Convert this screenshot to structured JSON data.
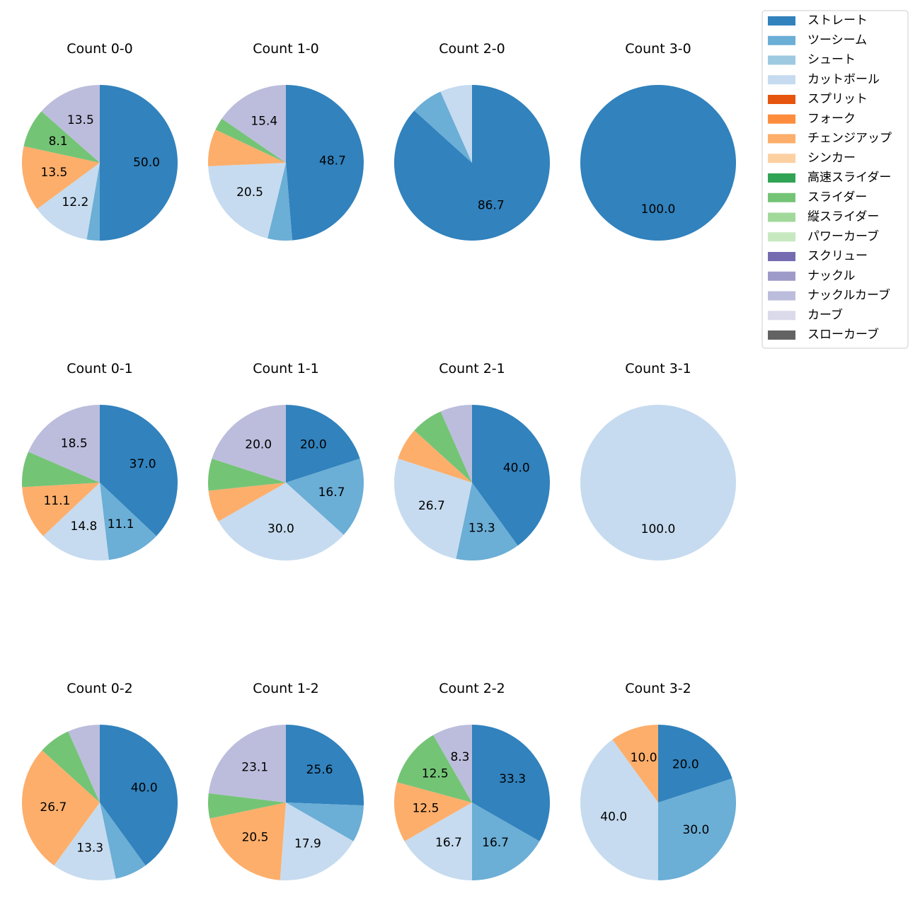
{
  "chart_data": {
    "type": "pie",
    "legend_position": "top-right",
    "colors": {
      "ストレート": "#3182bd",
      "ツーシーム": "#6baed6",
      "シュート": "#9ecae1",
      "カットボール": "#c6dbef",
      "スプリット": "#e6550d",
      "フォーク": "#fd8d3c",
      "チェンジアップ": "#fdae6b",
      "シンカー": "#fdd0a2",
      "高速スライダー": "#31a354",
      "スライダー": "#74c476",
      "縦スライダー": "#a1d99b",
      "パワーカーブ": "#c7e9c0",
      "スクリュー": "#756bb1",
      "ナックル": "#9e9ac8",
      "ナックルカーブ": "#bcbddc",
      "カーブ": "#dadaeb",
      "スローカーブ": "#636363"
    },
    "legend": [
      "ストレート",
      "ツーシーム",
      "シュート",
      "カットボール",
      "スプリット",
      "フォーク",
      "チェンジアップ",
      "シンカー",
      "高速スライダー",
      "スライダー",
      "縦スライダー",
      "パワーカーブ",
      "スクリュー",
      "ナックル",
      "ナックルカーブ",
      "カーブ",
      "スローカーブ"
    ],
    "panels": [
      {
        "title": "Count 0-0",
        "slices": [
          {
            "category": "ストレート",
            "value": 50.0,
            "label": "50.0"
          },
          {
            "category": "ツーシーム",
            "value": 2.7,
            "label": ""
          },
          {
            "category": "カットボール",
            "value": 12.2,
            "label": "12.2"
          },
          {
            "category": "チェンジアップ",
            "value": 13.5,
            "label": "13.5"
          },
          {
            "category": "スライダー",
            "value": 8.1,
            "label": "8.1"
          },
          {
            "category": "ナックルカーブ",
            "value": 13.5,
            "label": "13.5"
          }
        ]
      },
      {
        "title": "Count 1-0",
        "slices": [
          {
            "category": "ストレート",
            "value": 48.7,
            "label": "48.7"
          },
          {
            "category": "ツーシーム",
            "value": 5.1,
            "label": ""
          },
          {
            "category": "カットボール",
            "value": 20.5,
            "label": "20.5"
          },
          {
            "category": "チェンジアップ",
            "value": 7.7,
            "label": ""
          },
          {
            "category": "スライダー",
            "value": 2.6,
            "label": ""
          },
          {
            "category": "ナックルカーブ",
            "value": 15.4,
            "label": "15.4"
          }
        ]
      },
      {
        "title": "Count 2-0",
        "slices": [
          {
            "category": "ストレート",
            "value": 86.7,
            "label": "86.7"
          },
          {
            "category": "ツーシーム",
            "value": 6.65,
            "label": ""
          },
          {
            "category": "カットボール",
            "value": 6.65,
            "label": ""
          }
        ]
      },
      {
        "title": "Count 3-0",
        "slices": [
          {
            "category": "ストレート",
            "value": 100.0,
            "label": "100.0"
          }
        ]
      },
      {
        "title": "Count 0-1",
        "slices": [
          {
            "category": "ストレート",
            "value": 37.0,
            "label": "37.0"
          },
          {
            "category": "ツーシーム",
            "value": 11.1,
            "label": "11.1"
          },
          {
            "category": "カットボール",
            "value": 14.8,
            "label": "14.8"
          },
          {
            "category": "チェンジアップ",
            "value": 11.1,
            "label": "11.1"
          },
          {
            "category": "スライダー",
            "value": 7.4,
            "label": ""
          },
          {
            "category": "ナックルカーブ",
            "value": 18.5,
            "label": "18.5"
          }
        ]
      },
      {
        "title": "Count 1-1",
        "slices": [
          {
            "category": "ストレート",
            "value": 20.0,
            "label": "20.0"
          },
          {
            "category": "ツーシーム",
            "value": 16.7,
            "label": "16.7"
          },
          {
            "category": "カットボール",
            "value": 30.0,
            "label": "30.0"
          },
          {
            "category": "チェンジアップ",
            "value": 6.65,
            "label": ""
          },
          {
            "category": "スライダー",
            "value": 6.65,
            "label": ""
          },
          {
            "category": "ナックルカーブ",
            "value": 20.0,
            "label": "20.0"
          }
        ]
      },
      {
        "title": "Count 2-1",
        "slices": [
          {
            "category": "ストレート",
            "value": 40.0,
            "label": "40.0"
          },
          {
            "category": "ツーシーム",
            "value": 13.3,
            "label": "13.3"
          },
          {
            "category": "カットボール",
            "value": 26.7,
            "label": "26.7"
          },
          {
            "category": "チェンジアップ",
            "value": 6.7,
            "label": ""
          },
          {
            "category": "スライダー",
            "value": 6.7,
            "label": ""
          },
          {
            "category": "ナックルカーブ",
            "value": 6.6,
            "label": ""
          }
        ]
      },
      {
        "title": "Count 3-1",
        "slices": [
          {
            "category": "カットボール",
            "value": 100.0,
            "label": "100.0"
          }
        ]
      },
      {
        "title": "Count 0-2",
        "slices": [
          {
            "category": "ストレート",
            "value": 40.0,
            "label": "40.0"
          },
          {
            "category": "ツーシーム",
            "value": 6.7,
            "label": ""
          },
          {
            "category": "カットボール",
            "value": 13.3,
            "label": "13.3"
          },
          {
            "category": "チェンジアップ",
            "value": 26.7,
            "label": "26.7"
          },
          {
            "category": "スライダー",
            "value": 6.65,
            "label": ""
          },
          {
            "category": "ナックルカーブ",
            "value": 6.65,
            "label": ""
          }
        ]
      },
      {
        "title": "Count 1-2",
        "slices": [
          {
            "category": "ストレート",
            "value": 25.6,
            "label": "25.6"
          },
          {
            "category": "ツーシーム",
            "value": 7.7,
            "label": ""
          },
          {
            "category": "カットボール",
            "value": 17.9,
            "label": "17.9"
          },
          {
            "category": "チェンジアップ",
            "value": 20.5,
            "label": "20.5"
          },
          {
            "category": "スライダー",
            "value": 5.2,
            "label": ""
          },
          {
            "category": "ナックルカーブ",
            "value": 23.1,
            "label": "23.1"
          }
        ]
      },
      {
        "title": "Count 2-2",
        "slices": [
          {
            "category": "ストレート",
            "value": 33.3,
            "label": "33.3"
          },
          {
            "category": "ツーシーム",
            "value": 16.7,
            "label": "16.7"
          },
          {
            "category": "カットボール",
            "value": 16.7,
            "label": "16.7"
          },
          {
            "category": "チェンジアップ",
            "value": 12.5,
            "label": "12.5"
          },
          {
            "category": "スライダー",
            "value": 12.5,
            "label": "12.5"
          },
          {
            "category": "ナックルカーブ",
            "value": 8.3,
            "label": "8.3"
          }
        ]
      },
      {
        "title": "Count 3-2",
        "slices": [
          {
            "category": "ストレート",
            "value": 20.0,
            "label": "20.0"
          },
          {
            "category": "ツーシーム",
            "value": 30.0,
            "label": "30.0"
          },
          {
            "category": "カットボール",
            "value": 40.0,
            "label": "40.0"
          },
          {
            "category": "チェンジアップ",
            "value": 10.0,
            "label": "10.0"
          }
        ]
      }
    ]
  }
}
